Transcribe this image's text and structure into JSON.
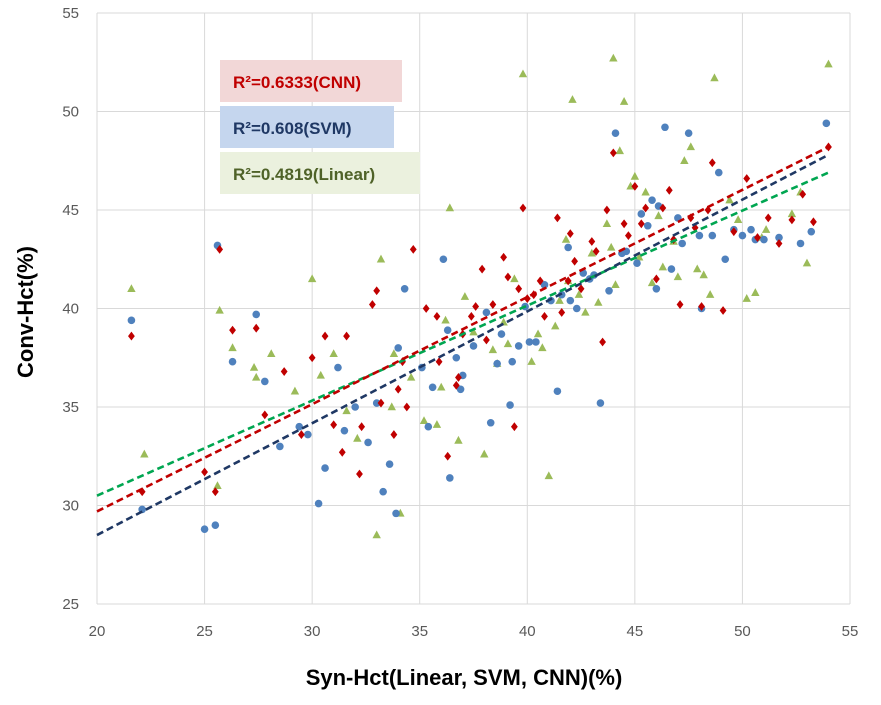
{
  "chart_data": {
    "type": "scatter",
    "title": "",
    "xlabel": "Syn-Hct(Linear, SVM, CNN)(%)",
    "ylabel": "Conv-Hct(%)",
    "xlim": [
      20,
      55
    ],
    "ylim": [
      25,
      55
    ],
    "xticks": [
      "20",
      "25",
      "30",
      "35",
      "40",
      "45",
      "50",
      "55"
    ],
    "yticks": [
      "25",
      "30",
      "35",
      "40",
      "45",
      "50",
      "55"
    ],
    "grid": true,
    "legend_position": "top-left",
    "series": [
      {
        "name": "Linear",
        "marker": "triangle",
        "color": "#9BBB59",
        "r2_label": "R²=0.4819(Linear)",
        "label_color": "#4F6228",
        "label_bg": "#EBF1DE",
        "trend": {
          "x1": 20,
          "y1": 30.5,
          "x2": 54,
          "y2": 46.9,
          "color": "#00A651"
        },
        "x": [
          21.6,
          22.2,
          25.6,
          25.7,
          26.3,
          27.3,
          27.4,
          28.1,
          29.2,
          30.0,
          31.0,
          33.0,
          33.2,
          33.8,
          34.1,
          35.2,
          36.4,
          36.8,
          38.0,
          38.4,
          39.1,
          39.8,
          40.5,
          41.0,
          41.5,
          42.1,
          42.4,
          43.3,
          44.0,
          44.3,
          44.5,
          45.2,
          45.8,
          46.3,
          47.0,
          47.6,
          48.2,
          48.7,
          49.4,
          50.2,
          50.6,
          51.1,
          52.3,
          53.0,
          54.0,
          34.6,
          36.2,
          37.5,
          39.4,
          40.7,
          41.8,
          43.0,
          44.8,
          46.1,
          47.3,
          48.5,
          49.8,
          35.8,
          38.6,
          41.3,
          43.7,
          45.5,
          32.1,
          33.7,
          36.0,
          37.1,
          40.2,
          42.7,
          44.1,
          46.8,
          47.9,
          50.9,
          52.7,
          30.4,
          31.6,
          38.9,
          41.9,
          43.9,
          45.0
        ],
        "y": [
          41.0,
          32.6,
          31.0,
          39.9,
          38.0,
          37.0,
          36.5,
          37.7,
          35.8,
          41.5,
          37.7,
          28.5,
          42.5,
          37.7,
          29.6,
          34.3,
          45.1,
          33.3,
          32.6,
          37.9,
          38.2,
          51.9,
          38.7,
          31.5,
          40.4,
          50.6,
          40.7,
          40.3,
          52.7,
          48.0,
          50.5,
          42.6,
          41.3,
          42.1,
          41.6,
          48.2,
          41.7,
          51.7,
          45.5,
          40.5,
          40.8,
          44.0,
          44.8,
          42.3,
          52.4,
          36.5,
          39.4,
          38.8,
          41.5,
          38.0,
          43.5,
          42.8,
          46.2,
          44.7,
          47.5,
          40.7,
          44.5,
          34.1,
          37.2,
          39.1,
          44.3,
          45.9,
          33.4,
          35.0,
          36.0,
          40.6,
          37.3,
          39.8,
          41.2,
          43.4,
          42.0,
          43.6,
          45.9,
          36.6,
          34.8,
          39.3,
          41.4,
          43.1,
          46.7
        ]
      },
      {
        "name": "SVM",
        "marker": "circle",
        "color": "#4F81BD",
        "r2_label": "R²=0.608(SVM)",
        "label_color": "#1F3864",
        "label_bg": "#C5D6EE",
        "trend": {
          "x1": 20,
          "y1": 28.5,
          "x2": 54,
          "y2": 47.8,
          "color": "#1F3864"
        },
        "x": [
          21.6,
          22.1,
          25.0,
          25.5,
          25.6,
          26.3,
          27.4,
          27.8,
          28.5,
          29.4,
          29.8,
          30.3,
          31.2,
          32.0,
          33.3,
          33.9,
          34.3,
          35.1,
          35.6,
          36.1,
          36.4,
          36.9,
          37.5,
          38.3,
          38.8,
          39.2,
          39.9,
          40.4,
          40.8,
          41.4,
          41.9,
          42.3,
          42.9,
          43.4,
          44.1,
          44.6,
          45.1,
          45.6,
          46.0,
          46.4,
          47.0,
          47.5,
          48.1,
          48.6,
          49.2,
          50.0,
          50.6,
          51.0,
          51.7,
          52.7,
          53.2,
          53.9,
          34.0,
          36.7,
          38.1,
          39.6,
          41.1,
          42.6,
          43.8,
          45.3,
          46.7,
          48.0,
          49.6,
          32.6,
          33.6,
          35.4,
          37.0,
          38.6,
          40.1,
          41.6,
          43.1,
          44.4,
          46.1,
          47.2,
          31.5,
          30.6,
          33.0,
          36.3,
          39.3,
          42.0,
          45.8,
          48.9,
          50.4
        ],
        "y": [
          39.4,
          29.8,
          28.8,
          29.0,
          43.2,
          37.3,
          39.7,
          36.3,
          33.0,
          34.0,
          33.6,
          30.1,
          37.0,
          35.0,
          30.7,
          29.6,
          41.0,
          37.0,
          36.0,
          42.5,
          31.4,
          35.9,
          38.1,
          34.2,
          38.7,
          35.1,
          40.1,
          38.3,
          41.2,
          35.8,
          43.1,
          40.0,
          41.5,
          35.2,
          48.9,
          42.9,
          42.3,
          44.2,
          41.0,
          49.2,
          44.6,
          48.9,
          40.0,
          43.7,
          42.5,
          43.7,
          43.5,
          43.5,
          43.6,
          43.3,
          43.9,
          49.4,
          38.0,
          37.5,
          39.8,
          38.1,
          40.4,
          41.8,
          40.9,
          44.8,
          42.0,
          43.7,
          44.0,
          33.2,
          32.1,
          34.0,
          36.6,
          37.2,
          38.3,
          40.7,
          41.7,
          42.8,
          45.2,
          43.3,
          33.8,
          31.9,
          35.2,
          38.9,
          37.3,
          40.4,
          45.5,
          46.9,
          44.0
        ]
      },
      {
        "name": "CNN",
        "marker": "diamond",
        "color": "#C00000",
        "r2_label": "R²=0.6333(CNN)",
        "label_color": "#C00000",
        "label_bg": "#F2D7D7",
        "trend": {
          "x1": 20,
          "y1": 29.7,
          "x2": 54,
          "y2": 48.2,
          "color": "#C00000"
        },
        "x": [
          21.6,
          22.1,
          25.0,
          25.5,
          25.7,
          26.3,
          27.4,
          27.8,
          28.7,
          29.5,
          30.0,
          30.6,
          31.0,
          31.4,
          31.6,
          32.2,
          32.8,
          33.2,
          33.8,
          34.2,
          34.7,
          35.3,
          35.8,
          36.3,
          36.8,
          37.4,
          37.9,
          38.4,
          38.9,
          39.4,
          39.8,
          40.3,
          40.8,
          41.4,
          41.9,
          42.5,
          43.0,
          43.5,
          44.0,
          44.5,
          45.0,
          45.5,
          46.0,
          46.6,
          47.1,
          47.6,
          48.1,
          48.6,
          49.1,
          49.6,
          50.2,
          50.7,
          51.2,
          51.7,
          52.3,
          52.8,
          53.3,
          54.0,
          33.0,
          34.4,
          35.9,
          37.6,
          39.1,
          40.6,
          42.2,
          43.7,
          45.3,
          46.8,
          48.4,
          36.7,
          38.1,
          40.0,
          41.6,
          43.2,
          44.7,
          46.3,
          47.8,
          32.3,
          34.0,
          37.0,
          39.6,
          42.0
        ],
        "y": [
          38.6,
          30.7,
          31.7,
          30.7,
          43.0,
          38.9,
          39.0,
          34.6,
          36.8,
          33.6,
          37.5,
          38.6,
          34.1,
          32.7,
          38.6,
          31.6,
          40.2,
          35.2,
          33.6,
          37.3,
          43.0,
          40.0,
          39.6,
          32.5,
          36.5,
          39.6,
          42.0,
          40.2,
          42.6,
          34.0,
          45.1,
          40.7,
          39.6,
          44.6,
          41.4,
          41.0,
          43.4,
          38.3,
          47.9,
          44.3,
          46.2,
          45.1,
          41.5,
          46.0,
          40.2,
          44.6,
          40.1,
          47.4,
          39.9,
          43.9,
          46.6,
          43.6,
          44.6,
          43.3,
          44.5,
          45.8,
          44.4,
          48.2,
          40.9,
          35.0,
          37.3,
          40.1,
          41.6,
          41.4,
          42.4,
          45.0,
          44.3,
          43.5,
          45.0,
          36.1,
          38.4,
          40.5,
          39.8,
          42.9,
          43.7,
          45.1,
          44.1,
          34.0,
          35.9,
          38.7,
          41.0,
          43.8
        ]
      }
    ]
  }
}
